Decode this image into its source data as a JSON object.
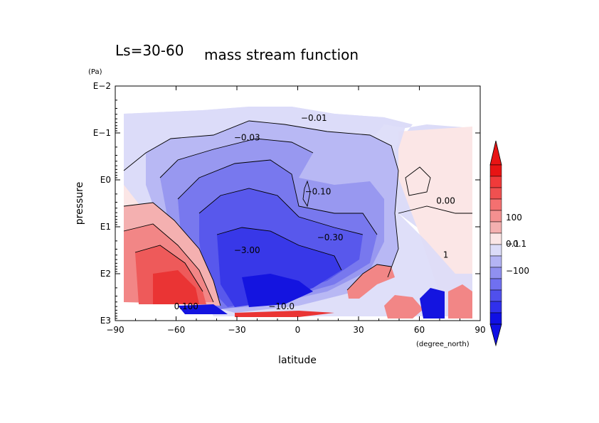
{
  "chart_data": {
    "type": "heatmap",
    "title_prefix": "Ls=30-60",
    "title": "mass stream function",
    "xlabel": "latitude",
    "xunit": "(degree_north)",
    "ylabel": "pressure",
    "yunit": "(Pa)",
    "x_ticks": [
      "−90",
      "−60",
      "−30",
      "0",
      "30",
      "60",
      "90"
    ],
    "y_ticks": [
      "E−2",
      "E−1",
      "E0",
      "E1",
      "E2",
      "E3"
    ],
    "xlim": [
      -90,
      90
    ],
    "ylim_log10_pa": [
      3,
      -2
    ],
    "y_scale": "log, inverted",
    "contour_labels": [
      {
        "text": "−0.01",
        "lat": 8,
        "logp": -1.32
      },
      {
        "text": "−0.03",
        "lat": -25,
        "logp": -0.9
      },
      {
        "text": "−0.10",
        "lat": 10,
        "logp": 0.25
      },
      {
        "text": "0.00",
        "lat": 73,
        "logp": 0.45
      },
      {
        "text": "−0.30",
        "lat": 16,
        "logp": 1.23
      },
      {
        "text": "−3.00",
        "lat": -25,
        "logp": 1.5
      },
      {
        "text": "−10.0",
        "lat": -8,
        "logp": 2.7
      },
      {
        "text": "0.100",
        "lat": -55,
        "logp": 2.7
      },
      {
        "text": "1",
        "lat": 73,
        "logp": 1.6
      }
    ],
    "colorbar": {
      "labels": [
        "100",
        "0.1",
        "−0.1",
        "−100"
      ],
      "colors_high_to_low": [
        "#e81414",
        "#f03a3a",
        "#f05050",
        "#f47070",
        "#f49090",
        "#f4b0b0",
        "#fbe6e6",
        "#dcdcf8",
        "#b4b4f4",
        "#9090f0",
        "#7070f0",
        "#5050ec",
        "#3030ec",
        "#1010e4"
      ]
    },
    "palette": {
      "positive": [
        "#fbe6e6",
        "#f4b0b0",
        "#f28686",
        "#ee5a5a",
        "#ea3434"
      ],
      "negative": [
        "#dcdcf8",
        "#b8b8f4",
        "#9898f0",
        "#7878ee",
        "#5858ec",
        "#3838e8",
        "#1414e0"
      ]
    }
  }
}
